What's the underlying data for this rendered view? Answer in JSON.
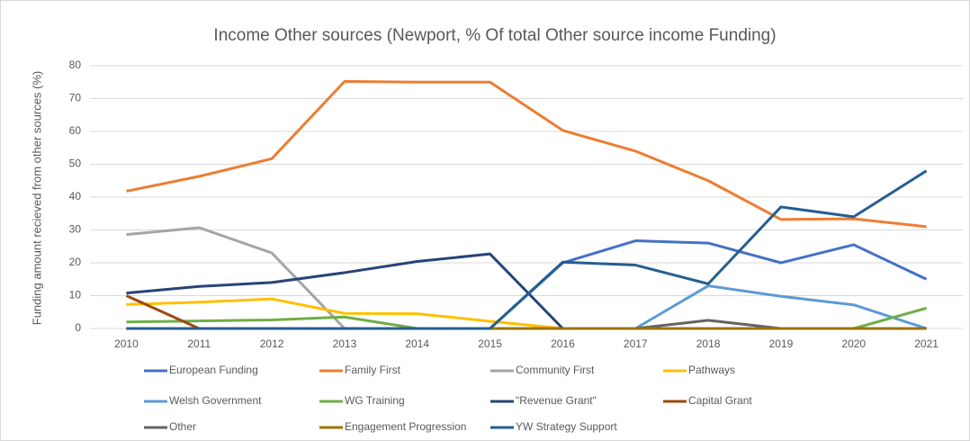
{
  "chart_data": {
    "type": "line",
    "title": "Income Other sources (Newport, % Of total Other source income Funding)",
    "y_label": "Funding amount recieved from other sources (%)",
    "categories": [
      "2010",
      "2011",
      "2012",
      "2013",
      "2014",
      "2015",
      "2016",
      "2017",
      "2018",
      "2019",
      "2020",
      "2021"
    ],
    "ylim": [
      0,
      80
    ],
    "yticks": [
      0,
      10,
      20,
      30,
      40,
      50,
      60,
      70,
      80
    ],
    "grid": true,
    "legend": "bottom",
    "series": [
      {
        "name": "European Funding",
        "color": "#4472c4",
        "values": [
          0,
          0,
          0,
          0,
          0,
          0,
          20,
          26.7,
          26,
          20,
          25.5,
          15
        ]
      },
      {
        "name": "Family First",
        "color": "#ed7d31",
        "values": [
          41.8,
          46.3,
          51.7,
          75.2,
          75,
          75,
          60.3,
          54,
          45,
          33.2,
          33.4,
          31
        ]
      },
      {
        "name": "Community First",
        "color": "#a5a5a5",
        "values": [
          28.6,
          30.7,
          23,
          0,
          0,
          0,
          0,
          0,
          0,
          0,
          0,
          0
        ]
      },
      {
        "name": "Pathways",
        "color": "#ffc000",
        "values": [
          7.3,
          8,
          9,
          4.6,
          4.5,
          2.2,
          0,
          0,
          0,
          0,
          0,
          0
        ]
      },
      {
        "name": "Welsh Government",
        "color": "#5b9bd5",
        "values": [
          0,
          0,
          0,
          0,
          0,
          0,
          0,
          0,
          13,
          9.8,
          7.2,
          0
        ]
      },
      {
        "name": "WG Training",
        "color": "#70ad47",
        "values": [
          2,
          2.3,
          2.6,
          3.5,
          0,
          0,
          0,
          0,
          0,
          0,
          0,
          6.2
        ]
      },
      {
        "name": "\"Revenue Grant\"",
        "color": "#264478",
        "values": [
          10.8,
          12.8,
          14,
          17,
          20.4,
          22.7,
          0,
          0,
          0,
          0,
          0,
          0
        ]
      },
      {
        "name": "Capital Grant",
        "color": "#9e480e",
        "values": [
          10,
          0,
          0,
          0,
          0,
          0,
          0,
          0,
          0,
          0,
          0,
          0
        ]
      },
      {
        "name": "Other",
        "color": "#636363",
        "values": [
          0,
          0,
          0,
          0,
          0,
          0,
          0,
          0,
          2.5,
          0,
          0,
          0
        ]
      },
      {
        "name": "Engagement Progression",
        "color": "#997300",
        "values": [
          0,
          0,
          0,
          0,
          0,
          0,
          0,
          0,
          0,
          0,
          0,
          0
        ]
      },
      {
        "name": "YW Strategy Support",
        "color": "#255e91",
        "values": [
          0,
          0,
          0,
          0,
          0,
          0,
          20.2,
          19.3,
          13.6,
          37,
          34,
          48
        ]
      }
    ]
  }
}
